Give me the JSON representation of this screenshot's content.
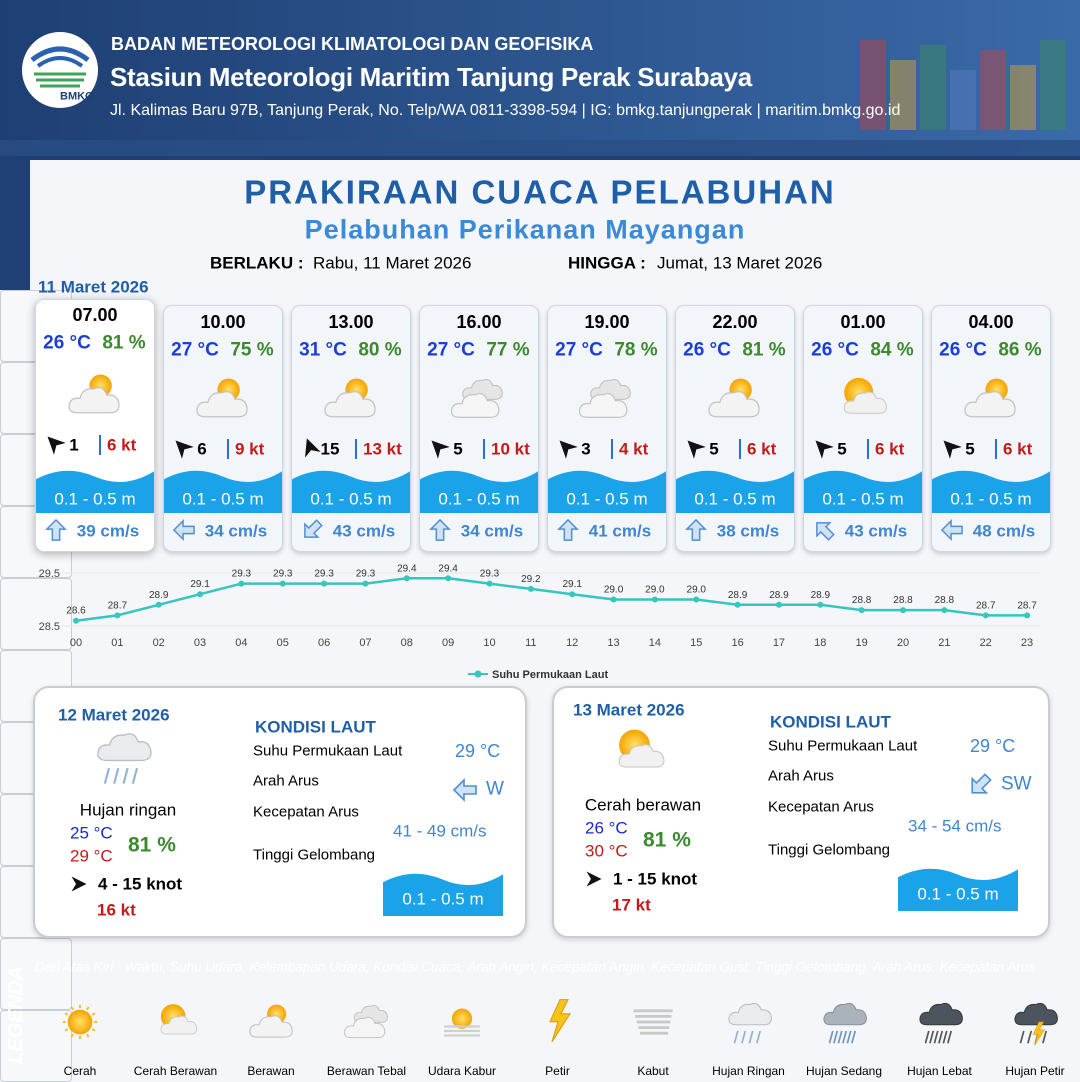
{
  "header": {
    "agency": "BADAN METEOROLOGI KLIMATOLOGI DAN GEOFISIKA",
    "station": "Stasiun Meteorologi Maritim Tanjung Perak Surabaya",
    "address": "Jl. Kalimas Baru 97B, Tanjung Perak, No. Telp/WA 0811-3398-594 | IG: bmkg.tanjungperak | maritim.bmkg.go.id",
    "logo": "BMKG"
  },
  "title": "PRAKIRAAN CUACA PELABUHAN",
  "subtitle": "Pelabuhan Perikanan Mayangan",
  "validity": {
    "from_label": "BERLAKU :",
    "from": "Rabu, 11 Maret 2026",
    "to_label": "HINGGA :",
    "to": "Jumat, 13 Maret 2026"
  },
  "today": {
    "date": "11 Maret 2026",
    "forecasts": [
      {
        "time": "07.00",
        "temperature": "26 °C",
        "humidity": "81 %",
        "wind_speed": "1",
        "gust": "6 kt",
        "wave": "0.1 - 0.5 m",
        "current": "39 cm/s"
      },
      {
        "time": "10.00",
        "temperature": "27 °C",
        "humidity": "75 %",
        "wind_speed": "6",
        "gust": "9 kt",
        "wave": "0.1 - 0.5 m",
        "current": "34 cm/s"
      },
      {
        "time": "13.00",
        "temperature": "31 °C",
        "humidity": "80 %",
        "wind_speed": "15",
        "gust": "13 kt",
        "wave": "0.1 - 0.5 m",
        "current": "43 cm/s"
      },
      {
        "time": "16.00",
        "temperature": "27 °C",
        "humidity": "77 %",
        "wind_speed": "5",
        "gust": "10 kt",
        "wave": "0.1 - 0.5 m",
        "current": "34 cm/s"
      },
      {
        "time": "19.00",
        "temperature": "27 °C",
        "humidity": "78 %",
        "wind_speed": "3",
        "gust": "4 kt",
        "wave": "0.1 - 0.5 m",
        "current": "41 cm/s"
      },
      {
        "time": "22.00",
        "temperature": "26 °C",
        "humidity": "81 %",
        "wind_speed": "5",
        "gust": "6 kt",
        "wave": "0.1 - 0.5 m",
        "current": "38 cm/s"
      },
      {
        "time": "01.00",
        "temperature": "26 °C",
        "humidity": "84 %",
        "wind_speed": "5",
        "gust": "6 kt",
        "wave": "0.1 - 0.5 m",
        "current": "43 cm/s"
      },
      {
        "time": "04.00",
        "temperature": "26 °C",
        "humidity": "86 %",
        "wind_speed": "5",
        "gust": "6 kt",
        "wave": "0.1 - 0.5 m",
        "current": "48 cm/s"
      }
    ]
  },
  "chart_data": {
    "type": "line",
    "categories": [
      "00",
      "01",
      "02",
      "03",
      "04",
      "05",
      "06",
      "07",
      "08",
      "09",
      "10",
      "11",
      "12",
      "13",
      "14",
      "15",
      "16",
      "17",
      "18",
      "19",
      "20",
      "21",
      "22",
      "23"
    ],
    "series": [
      {
        "name": "Suhu Permukaan Laut",
        "color": "#35c6bd",
        "values": [
          28.6,
          28.7,
          28.9,
          29.1,
          29.3,
          29.3,
          29.3,
          29.3,
          29.4,
          29.4,
          29.3,
          29.2,
          29.1,
          29.0,
          29.0,
          29.0,
          28.9,
          28.9,
          28.9,
          28.8,
          28.8,
          28.8,
          28.7,
          28.7
        ],
        "value_labels": [
          "28.6",
          "28.7",
          "28.9",
          "29.1",
          "29.3",
          "29.3",
          "29.3",
          "29.3",
          "29.4",
          "29.4",
          "29.3",
          "29.2",
          "29.1",
          "29.0",
          "29.0",
          "29.0",
          "28.9",
          "28.9",
          "28.9",
          "28.8",
          "28.8",
          "28.8",
          "28.7",
          "28.7"
        ]
      }
    ],
    "ylim": [
      28.5,
      29.5
    ],
    "yticks": [
      28.5,
      29.5
    ],
    "legend": "bottom"
  },
  "days": [
    {
      "date": "12 Maret 2026",
      "condition": "Hujan ringan",
      "temp_min": "25 °C",
      "temp_max": "29 °C",
      "humidity": "81 %",
      "wind": "4  - 15 knot",
      "gust": "16 kt",
      "sea": {
        "title": "KONDISI LAUT",
        "sst_label": "Suhu Permukaan Laut",
        "sst": "29 °C",
        "dir_label": "Arah Arus",
        "dir": "W",
        "speed_label": "Kecepatan Arus",
        "speed": "41  - 49 cm/s",
        "wave_label": "Tinggi Gelombang",
        "wave": "0.1 - 0.5 m"
      }
    },
    {
      "date": "13 Maret 2026",
      "condition": "Cerah berawan",
      "temp_min": "26 °C",
      "temp_max": "30 °C",
      "humidity": "81 %",
      "wind": "1  - 15 knot",
      "gust": "17 kt",
      "sea": {
        "title": "KONDISI LAUT",
        "sst_label": "Suhu Permukaan Laut",
        "sst": "29 °C",
        "dir_label": "Arah Arus",
        "dir": "SW",
        "speed_label": "Kecepatan Arus",
        "speed": "34  - 54 cm/s",
        "wave_label": "Tinggi Gelombang",
        "wave": "0.1 - 0.5 m"
      }
    }
  ],
  "legend": {
    "title": "LEGENDA",
    "description": "Dari Atas Kiri : Waktu, Suhu Udara, Kelembapan Udara, Kondisi Cuaca, Arah Angin, Kecepatan Angin, Kecepatan Gust, Tinggi Gelombang, Arah Arus, Kecepatan Arus",
    "items": [
      "Cerah",
      "Cerah Berawan",
      "Berawan",
      "Berawan Tebal",
      "Udara Kabur",
      "Petir",
      "Kabut",
      "Hujan Ringan",
      "Hujan Sedang",
      "Hujan Lebat",
      "Hujan Petir"
    ]
  }
}
